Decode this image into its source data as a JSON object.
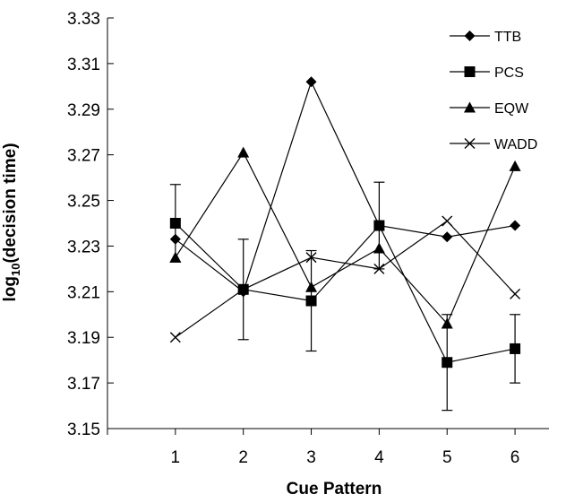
{
  "chart_data": {
    "type": "line",
    "title": "",
    "xlabel": "Cue Pattern",
    "ylabel_main": "log",
    "ylabel_sub": "10",
    "ylabel_rest": "(decision time)",
    "x": [
      1,
      2,
      3,
      4,
      5,
      6
    ],
    "x_tick_labels": [
      "1",
      "2",
      "3",
      "4",
      "5",
      "6"
    ],
    "xlim": [
      0,
      6.5
    ],
    "ylim": [
      3.15,
      3.33
    ],
    "y_ticks": [
      3.15,
      3.17,
      3.19,
      3.21,
      3.23,
      3.25,
      3.27,
      3.29,
      3.31,
      3.33
    ],
    "y_tick_labels": [
      "3.15",
      "3.17",
      "3.19",
      "3.21",
      "3.23",
      "3.25",
      "3.27",
      "3.29",
      "3.31",
      "3.33"
    ],
    "grid": false,
    "legend_position": "top-right",
    "series": [
      {
        "name": "TTB",
        "marker": "diamond",
        "values": [
          3.233,
          3.21,
          3.302,
          3.239,
          3.234,
          3.239
        ],
        "errors": [
          null,
          null,
          null,
          null,
          null,
          null
        ]
      },
      {
        "name": "PCS",
        "marker": "square",
        "values": [
          3.24,
          3.211,
          3.206,
          3.239,
          3.179,
          3.185
        ],
        "errors": [
          0.017,
          0.022,
          0.022,
          0.019,
          0.021,
          0.015
        ]
      },
      {
        "name": "EQW",
        "marker": "triangle",
        "values": [
          3.225,
          3.271,
          3.212,
          3.229,
          3.196,
          3.265
        ],
        "errors": [
          null,
          null,
          null,
          null,
          null,
          null
        ]
      },
      {
        "name": "WADD",
        "marker": "x",
        "values": [
          3.19,
          3.211,
          3.225,
          3.22,
          3.241,
          3.209
        ],
        "errors": [
          null,
          null,
          null,
          null,
          null,
          null
        ]
      }
    ]
  }
}
